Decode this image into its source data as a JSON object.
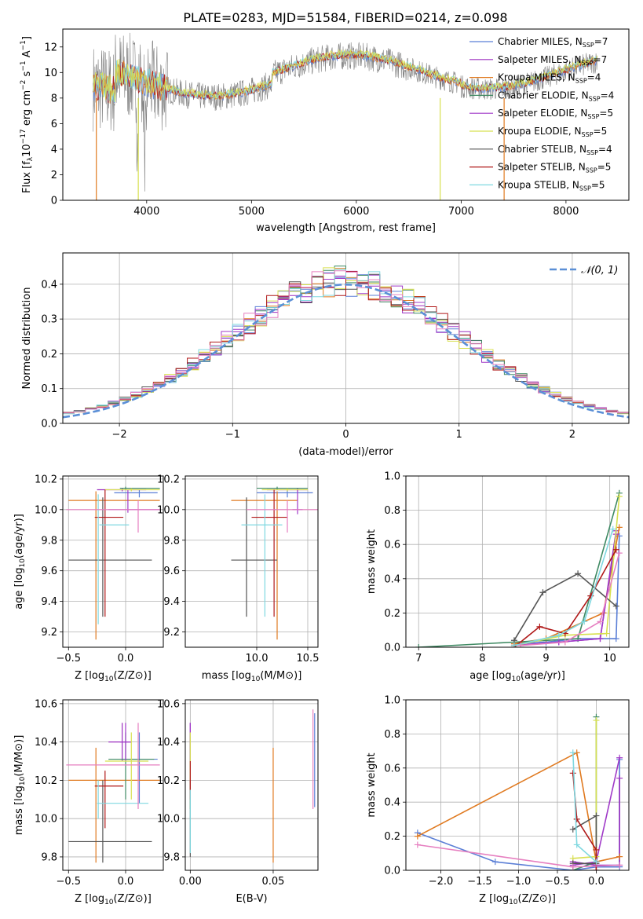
{
  "figure": {
    "title": "PLATE=0283, MJD=51584, FIBERID=0214, z=0.098"
  },
  "legend_entries": [
    {
      "pre": "Chabrier MILES, N",
      "sub": "SSP",
      "post": "=7",
      "color": "#5b7fd6"
    },
    {
      "pre": "Salpeter MILES, N",
      "sub": "SSP",
      "post": "=7",
      "color": "#9b2fbf"
    },
    {
      "pre": "Kroupa MILES, N",
      "sub": "SSP",
      "post": "=4",
      "color": "#e07a20"
    },
    {
      "pre": "Chabrier ELODIE, N",
      "sub": "SSP",
      "post": "=4",
      "color": "#3f8a63"
    },
    {
      "pre": "Salpeter ELODIE, N",
      "sub": "SSP",
      "post": "=5",
      "color": "#a03ac8"
    },
    {
      "pre": "Kroupa ELODIE, N",
      "sub": "SSP",
      "post": "=5",
      "color": "#d8e050"
    },
    {
      "pre": "Chabrier STELIB, N",
      "sub": "SSP",
      "post": "=4",
      "color": "#555555"
    },
    {
      "pre": "Salpeter STELIB, N",
      "sub": "SSP",
      "post": "=5",
      "color": "#b01818"
    },
    {
      "pre": "Kroupa STELIB, N",
      "sub": "SSP",
      "post": "=5",
      "color": "#7fd8e0"
    }
  ],
  "chart_data": [
    {
      "id": "spectrum",
      "type": "line",
      "xlabel": "wavelength [Angstrom, rest frame]",
      "ylabel": "Flux [f",
      "xlim": [
        3200,
        8600
      ],
      "ylim": [
        0,
        13.4
      ],
      "xticks": [
        4000,
        5000,
        6000,
        7000,
        8000
      ],
      "yticks": [
        0,
        2,
        4,
        6,
        8,
        10,
        12
      ],
      "grid": false,
      "legend": "top-right",
      "series_note_colors": [
        "#808080",
        "#5b7fd6",
        "#e07a20",
        "#b01818",
        "#7fd8e0",
        "#d8e050"
      ]
    },
    {
      "id": "residuals",
      "type": "line",
      "xlabel": "(data-model)/error",
      "ylabel": "Normed distribution",
      "xlim": [
        -2.5,
        2.5
      ],
      "ylim": [
        0,
        0.49
      ],
      "xticks": [
        -2,
        -1,
        0,
        1,
        2
      ],
      "yticks": [
        0.0,
        0.1,
        0.2,
        0.3,
        0.4
      ],
      "grid": true,
      "legend": "top-right",
      "legend_label": "𝒩(0, 1)"
    },
    {
      "id": "age_vs_Z",
      "type": "scatter",
      "xlabel": "Z [log",
      "ylabel": "age  [log",
      "xlim": [
        -0.55,
        0.33
      ],
      "ylim": [
        9.1,
        10.22
      ],
      "xticks": [
        -0.5,
        0.0
      ],
      "yticks": [
        9.2,
        9.4,
        9.6,
        9.8,
        10.0,
        10.2
      ],
      "grid": true,
      "points": [
        {
          "x": 0.12,
          "y": 10.11,
          "xl": -0.1,
          "xh": 0.28,
          "yl": 10.08,
          "yh": 10.13,
          "c": "#5b7fd6"
        },
        {
          "x": -0.03,
          "y": 10.13,
          "xl": -0.25,
          "xh": 0.18,
          "yl": 10.12,
          "yh": 10.14,
          "c": "#9b2fbf"
        },
        {
          "x": -0.26,
          "y": 10.06,
          "xl": -0.5,
          "xh": 0.3,
          "yl": 9.15,
          "yh": 10.12,
          "c": "#e07a20"
        },
        {
          "x": 0.0,
          "y": 10.14,
          "xl": -0.05,
          "xh": 0.3,
          "yl": 10.13,
          "yh": 10.15,
          "c": "#3f8a63"
        },
        {
          "x": 0.02,
          "y": 10.0,
          "xl": -0.15,
          "xh": 0.3,
          "yl": 9.98,
          "yh": 10.13,
          "c": "#a03ac8"
        },
        {
          "x": 0.05,
          "y": 10.13,
          "xl": -0.18,
          "xh": 0.3,
          "yl": 10.12,
          "yh": 10.14,
          "c": "#d8e050"
        },
        {
          "x": -0.2,
          "y": 9.67,
          "xl": -0.5,
          "xh": 0.23,
          "yl": 9.3,
          "yh": 10.08,
          "c": "#555555"
        },
        {
          "x": -0.18,
          "y": 9.95,
          "xl": -0.27,
          "xh": -0.02,
          "yl": 9.3,
          "yh": 10.13,
          "c": "#b01818"
        },
        {
          "x": -0.24,
          "y": 9.9,
          "xl": -0.23,
          "xh": 0.03,
          "yl": 9.25,
          "yh": 10.1,
          "c": "#7fd8e0"
        },
        {
          "x": 0.11,
          "y": 10.0,
          "xl": -0.52,
          "xh": 0.3,
          "yl": 9.85,
          "yh": 10.06,
          "c": "#e67fc0"
        }
      ]
    },
    {
      "id": "age_vs_mass",
      "type": "scatter",
      "xlabel": "mass [log",
      "ylabel": "",
      "xlim": [
        9.3,
        10.6
      ],
      "ylim": [
        9.1,
        10.22
      ],
      "xticks": [
        10.0,
        10.5
      ],
      "yticks": [
        9.2,
        9.4,
        9.6,
        9.8,
        10.0,
        10.2
      ],
      "grid": true,
      "points": [
        {
          "x": 10.3,
          "y": 10.11,
          "xl": 10.0,
          "xh": 10.55,
          "yl": 10.08,
          "yh": 10.14,
          "c": "#5b7fd6"
        },
        {
          "x": 10.4,
          "y": 10.13,
          "xl": 10.1,
          "xh": 10.5,
          "yl": 10.12,
          "yh": 10.14,
          "c": "#9b2fbf"
        },
        {
          "x": 10.2,
          "y": 10.06,
          "xl": 9.75,
          "xh": 10.4,
          "yl": 9.15,
          "yh": 10.12,
          "c": "#e07a20"
        },
        {
          "x": 10.2,
          "y": 10.14,
          "xl": 10.0,
          "xh": 10.5,
          "yl": 10.13,
          "yh": 10.15,
          "c": "#3f8a63"
        },
        {
          "x": 10.4,
          "y": 10.0,
          "xl": 10.35,
          "xh": 10.45,
          "yl": 9.97,
          "yh": 10.13,
          "c": "#a03ac8"
        },
        {
          "x": 10.3,
          "y": 10.13,
          "xl": 10.05,
          "xh": 10.5,
          "yl": 10.12,
          "yh": 10.14,
          "c": "#d8e050"
        },
        {
          "x": 9.9,
          "y": 9.67,
          "xl": 9.75,
          "xh": 10.2,
          "yl": 9.3,
          "yh": 10.08,
          "c": "#555555"
        },
        {
          "x": 10.17,
          "y": 9.95,
          "xl": 9.95,
          "xh": 10.3,
          "yl": 9.3,
          "yh": 10.13,
          "c": "#b01818"
        },
        {
          "x": 10.08,
          "y": 9.9,
          "xl": 9.85,
          "xh": 10.25,
          "yl": 9.3,
          "yh": 10.1,
          "c": "#7fd8e0"
        },
        {
          "x": 10.3,
          "y": 10.0,
          "xl": 9.9,
          "xh": 10.6,
          "yl": 9.85,
          "yh": 10.06,
          "c": "#e67fc0"
        }
      ]
    },
    {
      "id": "weight_vs_age",
      "type": "line",
      "xlabel": "age  [log",
      "ylabel": "mass weight",
      "xlim": [
        6.8,
        10.3
      ],
      "ylim": [
        0,
        1.0
      ],
      "xticks": [
        7,
        8,
        9,
        10
      ],
      "yticks": [
        0.0,
        0.2,
        0.4,
        0.6,
        0.8,
        1.0
      ],
      "grid": true,
      "series": [
        {
          "c": "#5b7fd6",
          "x": [
            8.5,
            9.0,
            9.5,
            10.1,
            10.15
          ],
          "y": [
            0.02,
            0.03,
            0.05,
            0.05,
            0.65
          ]
        },
        {
          "c": "#9b2fbf",
          "x": [
            8.5,
            9.2,
            9.85,
            10.1
          ],
          "y": [
            0.01,
            0.03,
            0.05,
            0.68
          ]
        },
        {
          "c": "#e07a20",
          "x": [
            8.5,
            9.0,
            9.9,
            10.15
          ],
          "y": [
            0.02,
            0.05,
            0.2,
            0.7
          ]
        },
        {
          "c": "#3f8a63",
          "x": [
            7.0,
            8.5,
            9.5,
            10.15
          ],
          "y": [
            0.0,
            0.03,
            0.05,
            0.9
          ]
        },
        {
          "c": "#a03ac8",
          "x": [
            8.5,
            9.2,
            9.85,
            10.1
          ],
          "y": [
            0.01,
            0.03,
            0.05,
            0.66
          ]
        },
        {
          "c": "#d8e050",
          "x": [
            8.5,
            9.3,
            9.95,
            10.15
          ],
          "y": [
            0.01,
            0.07,
            0.08,
            0.88
          ]
        },
        {
          "c": "#555555",
          "x": [
            8.5,
            8.95,
            9.5,
            10.1
          ],
          "y": [
            0.04,
            0.32,
            0.43,
            0.24
          ]
        },
        {
          "c": "#b01818",
          "x": [
            8.5,
            8.9,
            9.3,
            9.7,
            10.1
          ],
          "y": [
            0.0,
            0.12,
            0.08,
            0.3,
            0.57
          ]
        },
        {
          "c": "#7fd8e0",
          "x": [
            8.5,
            9.2,
            9.6,
            10.05
          ],
          "y": [
            0.01,
            0.07,
            0.15,
            0.69
          ]
        },
        {
          "c": "#e67fc0",
          "x": [
            8.6,
            9.3,
            9.85,
            10.15
          ],
          "y": [
            0.01,
            0.03,
            0.15,
            0.55
          ]
        }
      ]
    },
    {
      "id": "mass_vs_Z",
      "type": "scatter",
      "xlabel": "Z [log",
      "ylabel": "mass [log",
      "xlim": [
        -0.55,
        0.33
      ],
      "ylim": [
        9.73,
        10.62
      ],
      "xticks": [
        -0.5,
        0.0
      ],
      "yticks": [
        9.8,
        10.0,
        10.2,
        10.4,
        10.6
      ],
      "grid": true,
      "points": [
        {
          "x": 0.12,
          "y": 10.31,
          "xl": -0.03,
          "xh": 0.28,
          "yl": 10.08,
          "yh": 10.45,
          "c": "#5b7fd6"
        },
        {
          "x": -0.03,
          "y": 10.4,
          "xl": -0.15,
          "xh": 0.05,
          "yl": 10.3,
          "yh": 10.5,
          "c": "#9b2fbf"
        },
        {
          "x": -0.26,
          "y": 10.2,
          "xl": -0.5,
          "xh": 0.3,
          "yl": 9.77,
          "yh": 10.37,
          "c": "#e07a20"
        },
        {
          "x": 0.0,
          "y": 10.31,
          "xl": -0.15,
          "xh": 0.25,
          "yl": 10.1,
          "yh": 10.45,
          "c": "#3f8a63"
        },
        {
          "x": 0.0,
          "y": 10.4,
          "xl": -0.05,
          "xh": 0.05,
          "yl": 10.3,
          "yh": 10.5,
          "c": "#a03ac8"
        },
        {
          "x": 0.05,
          "y": 10.3,
          "xl": -0.18,
          "xh": 0.2,
          "yl": 10.1,
          "yh": 10.45,
          "c": "#d8e050"
        },
        {
          "x": -0.2,
          "y": 9.88,
          "xl": -0.5,
          "xh": 0.23,
          "yl": 9.77,
          "yh": 10.2,
          "c": "#555555"
        },
        {
          "x": -0.18,
          "y": 10.17,
          "xl": -0.27,
          "xh": -0.02,
          "yl": 9.95,
          "yh": 10.25,
          "c": "#b01818"
        },
        {
          "x": -0.24,
          "y": 10.08,
          "xl": -0.25,
          "xh": 0.2,
          "yl": 10.0,
          "yh": 10.2,
          "c": "#7fd8e0"
        },
        {
          "x": 0.11,
          "y": 10.28,
          "xl": -0.52,
          "xh": 0.3,
          "yl": 10.05,
          "yh": 10.5,
          "c": "#e67fc0"
        }
      ]
    },
    {
      "id": "mass_vs_ebv",
      "type": "scatter",
      "xlabel": "E(B-V)",
      "ylabel": "",
      "xlim": [
        -0.003,
        0.077
      ],
      "ylim": [
        9.73,
        10.62
      ],
      "xticks": [
        0.0,
        0.05
      ],
      "yticks": [
        9.8,
        10.0,
        10.2,
        10.4,
        10.6
      ],
      "grid": true,
      "points": [
        {
          "x": 0.075,
          "y": 10.3,
          "yl": 10.06,
          "yh": 10.55,
          "c": "#5b7fd6"
        },
        {
          "x": 0.0,
          "y": 10.4,
          "yl": 10.3,
          "yh": 10.5,
          "c": "#9b2fbf"
        },
        {
          "x": 0.05,
          "y": 10.2,
          "yl": 9.77,
          "yh": 10.37,
          "c": "#e07a20"
        },
        {
          "x": 0.0,
          "y": 10.3,
          "yl": 10.05,
          "yh": 10.45,
          "c": "#3f8a63"
        },
        {
          "x": 0.0,
          "y": 10.42,
          "yl": 10.3,
          "yh": 10.5,
          "c": "#a03ac8"
        },
        {
          "x": 0.0,
          "y": 10.3,
          "yl": 10.05,
          "yh": 10.45,
          "c": "#d8e050"
        },
        {
          "x": 0.0,
          "y": 10.0,
          "yl": 9.8,
          "yh": 10.2,
          "c": "#555555"
        },
        {
          "x": 0.0,
          "y": 10.2,
          "yl": 10.1,
          "yh": 10.3,
          "c": "#b01818"
        },
        {
          "x": 0.0,
          "y": 10.0,
          "yl": 9.82,
          "yh": 10.15,
          "c": "#7fd8e0"
        },
        {
          "x": 0.074,
          "y": 10.3,
          "yl": 10.05,
          "yh": 10.57,
          "c": "#e67fc0"
        }
      ]
    },
    {
      "id": "weight_vs_Z",
      "type": "line",
      "xlabel": "Z [log",
      "ylabel": "mass weight",
      "xlim": [
        -2.45,
        0.42
      ],
      "ylim": [
        0,
        1.0
      ],
      "xticks": [
        -2.0,
        -1.5,
        -1.0,
        -0.5,
        0.0
      ],
      "yticks": [
        0.0,
        0.2,
        0.4,
        0.6,
        0.8,
        1.0
      ],
      "grid": true,
      "series": [
        {
          "c": "#5b7fd6",
          "x": [
            -2.3,
            -1.3,
            -0.3,
            0.0,
            0.3,
            0.3
          ],
          "y": [
            0.22,
            0.05,
            0.0,
            0.02,
            0.02,
            0.65
          ]
        },
        {
          "c": "#9b2fbf",
          "x": [
            -0.3,
            0.0,
            0.3,
            0.3
          ],
          "y": [
            0.05,
            0.03,
            0.03,
            0.54
          ]
        },
        {
          "c": "#e07a20",
          "x": [
            -2.3,
            -0.25,
            0.0,
            0.3
          ],
          "y": [
            0.2,
            0.69,
            0.05,
            0.08
          ]
        },
        {
          "c": "#3f8a63",
          "x": [
            -0.3,
            0.0,
            0.0
          ],
          "y": [
            0.0,
            0.05,
            0.9
          ]
        },
        {
          "c": "#a03ac8",
          "x": [
            -0.3,
            0.0,
            0.3
          ],
          "y": [
            0.03,
            0.05,
            0.66
          ]
        },
        {
          "c": "#d8e050",
          "x": [
            -0.3,
            0.0,
            0.0
          ],
          "y": [
            0.07,
            0.08,
            0.88
          ]
        },
        {
          "c": "#555555",
          "x": [
            -0.3,
            0.0,
            0.0,
            -0.3
          ],
          "y": [
            0.24,
            0.32,
            0.04,
            0.04
          ]
        },
        {
          "c": "#b01818",
          "x": [
            -0.3,
            -0.25,
            0.0,
            0.0
          ],
          "y": [
            0.57,
            0.3,
            0.12,
            0.0
          ]
        },
        {
          "c": "#7fd8e0",
          "x": [
            -0.3,
            -0.25,
            0.0
          ],
          "y": [
            0.69,
            0.15,
            0.05
          ]
        },
        {
          "c": "#e67fc0",
          "x": [
            -2.3,
            -0.3,
            0.3
          ],
          "y": [
            0.15,
            0.02,
            0.03
          ]
        }
      ]
    }
  ]
}
